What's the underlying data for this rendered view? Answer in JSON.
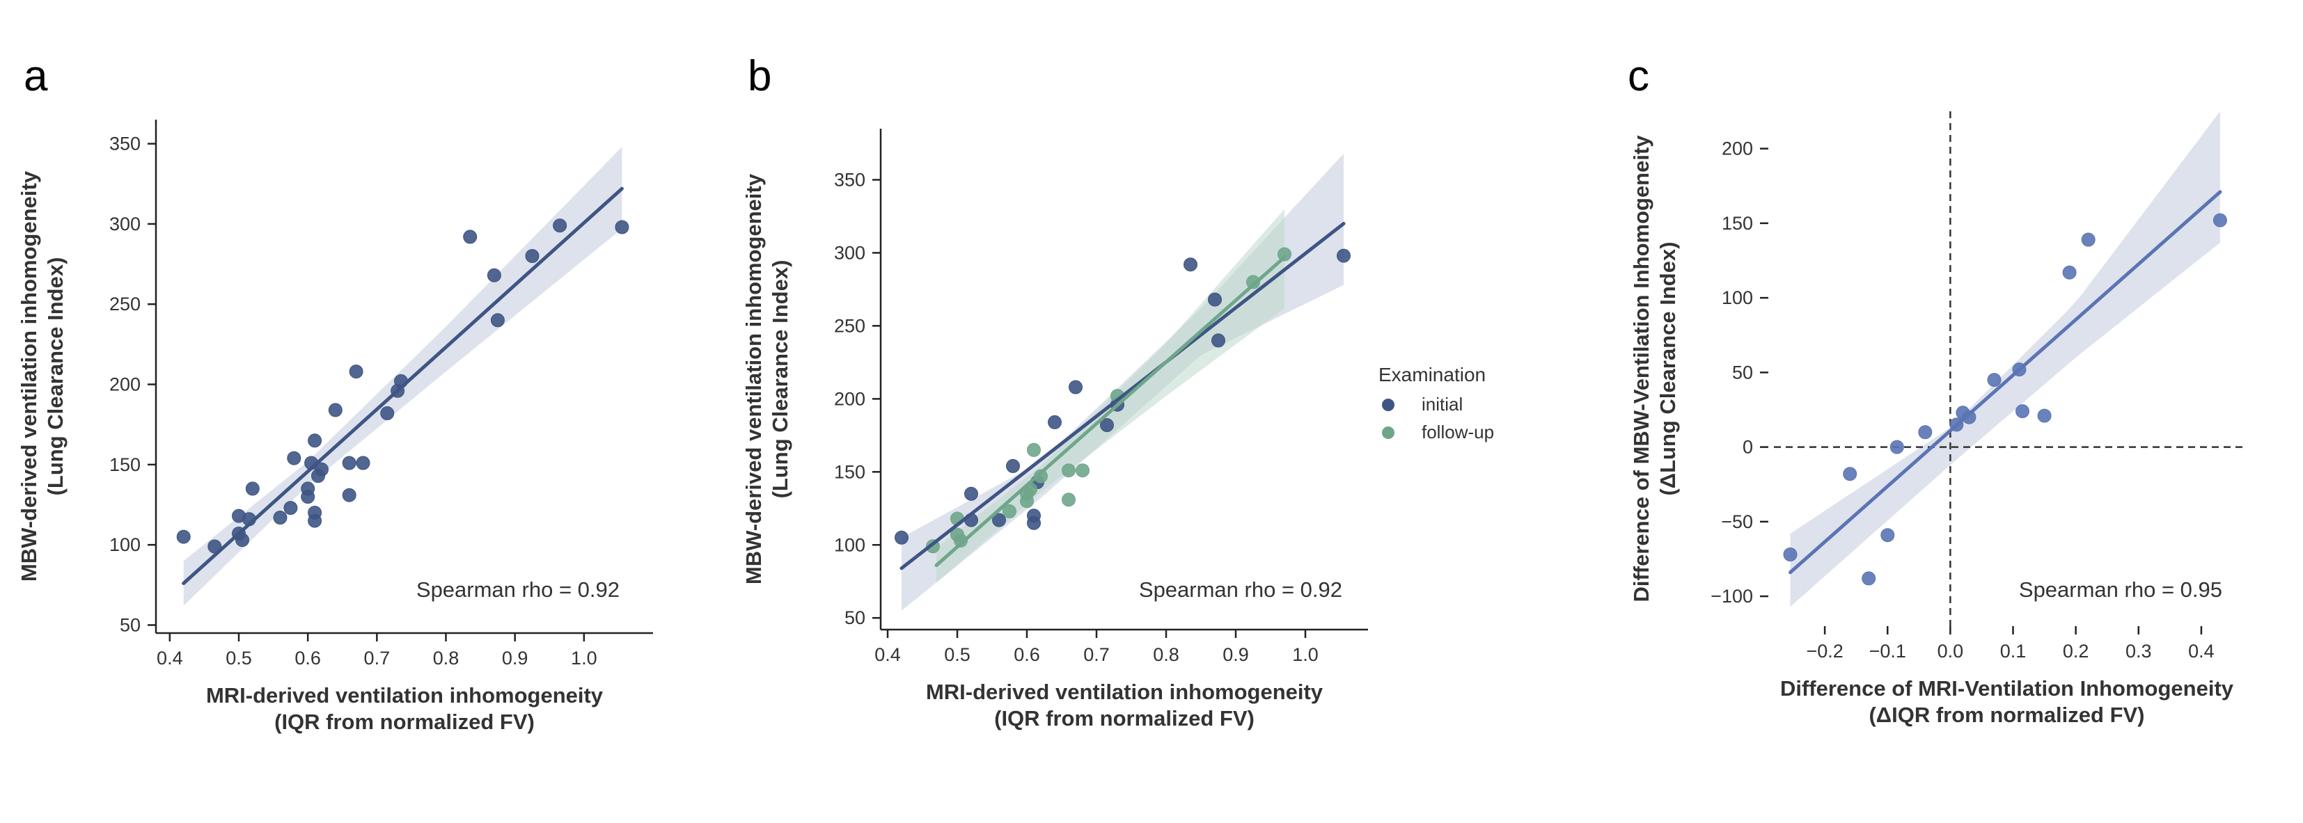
{
  "panels": [
    {
      "letter": "a",
      "xlabel_lines": [
        "MRI-derived ventilation inhomogeneity",
        "(IQR from  normalized FV)"
      ],
      "ylabel_lines": [
        "MBW-derived ventilation inhomogeneity",
        "(Lung Clearance Index)"
      ],
      "annotation": "Spearman rho = 0.92"
    },
    {
      "letter": "b",
      "xlabel_lines": [
        "MRI-derived ventilation inhomogeneity",
        "(IQR from  normalized FV)"
      ],
      "ylabel_lines": [
        "MBW-derived ventilation inhomogeneity",
        "(Lung Clearance Index)"
      ],
      "annotation": "Spearman rho = 0.92",
      "legend": {
        "title": "Examination",
        "items": [
          "initial",
          "follow-up"
        ]
      }
    },
    {
      "letter": "c",
      "xlabel_lines": [
        "Difference of MRI-Ventilation Inhomogeneity",
        "(ΔIQR from  normalized FV)"
      ],
      "ylabel_lines": [
        "Difference of MBW-Ventilation Inhomogeneity",
        "(ΔLung Clearance Index)"
      ],
      "annotation": "Spearman rho = 0.95"
    }
  ],
  "colors": {
    "initial": "#3e5584",
    "followup": "#6fa68b",
    "diff": "#5a74b4",
    "band_initial": "#c7cfe0",
    "band_followup": "#bdd8ca",
    "axis": "#222222",
    "text": "#333333"
  },
  "chart_data": [
    {
      "type": "scatter",
      "panel": "a",
      "xlim": [
        0.38,
        1.1
      ],
      "ylim": [
        45,
        365
      ],
      "x_ticks": [
        0.4,
        0.5,
        0.6,
        0.7,
        0.8,
        0.9,
        1.0
      ],
      "x_tick_labels": [
        "0.4",
        "0.5",
        "0.6",
        "0.7",
        "0.8",
        "0.9",
        "1.0"
      ],
      "y_ticks": [
        50,
        100,
        150,
        200,
        250,
        300,
        350
      ],
      "y_tick_labels": [
        "50",
        "100",
        "150",
        "200",
        "250",
        "300",
        "350"
      ],
      "series": [
        {
          "name": "initial",
          "points": [
            [
              0.42,
              105
            ],
            [
              0.465,
              99
            ],
            [
              0.5,
              118
            ],
            [
              0.5,
              107
            ],
            [
              0.505,
              103
            ],
            [
              0.515,
              116
            ],
            [
              0.52,
              135
            ],
            [
              0.56,
              117
            ],
            [
              0.575,
              123
            ],
            [
              0.58,
              154
            ],
            [
              0.6,
              130
            ],
            [
              0.6,
              135
            ],
            [
              0.605,
              151
            ],
            [
              0.61,
              165
            ],
            [
              0.61,
              120
            ],
            [
              0.61,
              115
            ],
            [
              0.615,
              143
            ],
            [
              0.62,
              147
            ],
            [
              0.64,
              184
            ],
            [
              0.66,
              131
            ],
            [
              0.66,
              151
            ],
            [
              0.67,
              208
            ],
            [
              0.68,
              151
            ],
            [
              0.715,
              182
            ],
            [
              0.73,
              196
            ],
            [
              0.735,
              202
            ],
            [
              0.835,
              292
            ],
            [
              0.87,
              268
            ],
            [
              0.875,
              240
            ],
            [
              0.925,
              280
            ],
            [
              0.965,
              299
            ],
            [
              1.055,
              298
            ]
          ],
          "fit": [
            [
              0.42,
              76
            ],
            [
              1.055,
              322
            ]
          ],
          "band": {
            "x": [
              0.42,
              0.6,
              0.8,
              1.055
            ],
            "lower": [
              62,
              137,
              208,
              297
            ],
            "upper": [
              90,
              152,
              236,
              348
            ]
          }
        }
      ]
    },
    {
      "type": "scatter",
      "panel": "b",
      "xlim": [
        0.39,
        1.09
      ],
      "ylim": [
        42,
        385
      ],
      "x_ticks": [
        0.4,
        0.5,
        0.6,
        0.7,
        0.8,
        0.9,
        1.0
      ],
      "x_tick_labels": [
        "0.4",
        "0.5",
        "0.6",
        "0.7",
        "0.8",
        "0.9",
        "1.0"
      ],
      "y_ticks": [
        50,
        100,
        150,
        200,
        250,
        300,
        350
      ],
      "y_tick_labels": [
        "50",
        "100",
        "150",
        "200",
        "250",
        "300",
        "350"
      ],
      "series": [
        {
          "name": "initial",
          "points": [
            [
              0.42,
              105
            ],
            [
              0.52,
              135
            ],
            [
              0.52,
              117
            ],
            [
              0.56,
              117
            ],
            [
              0.58,
              154
            ],
            [
              0.61,
              120
            ],
            [
              0.61,
              115
            ],
            [
              0.615,
              143
            ],
            [
              0.64,
              184
            ],
            [
              0.67,
              208
            ],
            [
              0.715,
              182
            ],
            [
              0.73,
              196
            ],
            [
              0.835,
              292
            ],
            [
              0.87,
              268
            ],
            [
              0.875,
              240
            ],
            [
              1.055,
              298
            ]
          ],
          "fit": [
            [
              0.42,
              84
            ],
            [
              1.055,
              320
            ]
          ],
          "band": {
            "x": [
              0.42,
              0.62,
              0.85,
              1.055
            ],
            "lower": [
              55,
              132,
              230,
              278
            ],
            "upper": [
              105,
              157,
              262,
              368
            ]
          }
        },
        {
          "name": "follow-up",
          "points": [
            [
              0.465,
              99
            ],
            [
              0.5,
              118
            ],
            [
              0.5,
              107
            ],
            [
              0.505,
              103
            ],
            [
              0.575,
              123
            ],
            [
              0.6,
              130
            ],
            [
              0.6,
              135
            ],
            [
              0.605,
              138
            ],
            [
              0.61,
              165
            ],
            [
              0.62,
              147
            ],
            [
              0.66,
              131
            ],
            [
              0.66,
              151
            ],
            [
              0.68,
              151
            ],
            [
              0.73,
              202
            ],
            [
              0.925,
              280
            ],
            [
              0.97,
              299
            ]
          ],
          "fit": [
            [
              0.47,
              86
            ],
            [
              0.97,
              297
            ]
          ],
          "band": {
            "x": [
              0.47,
              0.62,
              0.8,
              0.97
            ],
            "lower": [
              74,
              136,
              202,
              262
            ],
            "upper": [
              98,
              154,
              238,
              330
            ]
          }
        }
      ]
    },
    {
      "type": "scatter",
      "panel": "c",
      "xlim": [
        -0.29,
        0.47
      ],
      "ylim": [
        -120,
        225
      ],
      "x_ticks": [
        -0.2,
        -0.1,
        0.0,
        0.1,
        0.2,
        0.3,
        0.4
      ],
      "x_tick_labels": [
        "−0.2",
        "−0.1",
        "0.0",
        "0.1",
        "0.2",
        "0.3",
        "0.4"
      ],
      "y_ticks": [
        -100,
        -50,
        0,
        50,
        100,
        150,
        200
      ],
      "y_tick_labels": [
        "−100",
        "−50",
        "0",
        "50",
        "100",
        "150",
        "200"
      ],
      "reference_lines": {
        "x": 0,
        "y": 0
      },
      "series": [
        {
          "name": "difference",
          "points": [
            [
              -0.255,
              -72
            ],
            [
              -0.16,
              -18
            ],
            [
              -0.13,
              -88
            ],
            [
              -0.1,
              -59
            ],
            [
              -0.085,
              0
            ],
            [
              -0.04,
              10
            ],
            [
              0.01,
              15
            ],
            [
              0.02,
              23
            ],
            [
              0.03,
              20
            ],
            [
              0.07,
              45
            ],
            [
              0.11,
              52
            ],
            [
              0.115,
              24
            ],
            [
              0.15,
              21
            ],
            [
              0.19,
              117
            ],
            [
              0.22,
              139
            ],
            [
              0.43,
              152
            ]
          ],
          "fit": [
            [
              -0.255,
              -84
            ],
            [
              0.43,
              171
            ]
          ],
          "band": {
            "x": [
              -0.255,
              0.0,
              0.2,
              0.43
            ],
            "lower": [
              -107,
              -12,
              60,
              137
            ],
            "upper": [
              -58,
              13,
              97,
              225
            ]
          }
        }
      ]
    }
  ]
}
